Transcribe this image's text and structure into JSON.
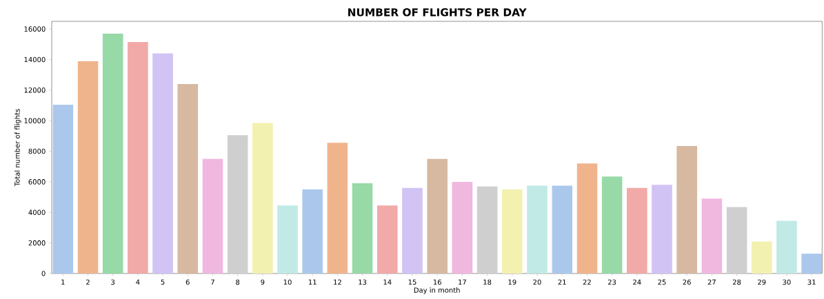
{
  "chart_data": {
    "type": "bar",
    "title": "NUMBER OF FLIGHTS PER DAY",
    "xlabel": "Day in month",
    "ylabel": "Total number of flights",
    "categories": [
      "1",
      "2",
      "3",
      "4",
      "5",
      "6",
      "7",
      "8",
      "9",
      "10",
      "11",
      "12",
      "13",
      "14",
      "15",
      "16",
      "17",
      "18",
      "19",
      "20",
      "21",
      "22",
      "23",
      "24",
      "25",
      "26",
      "27",
      "28",
      "29",
      "30",
      "31"
    ],
    "values": [
      11050,
      13900,
      15700,
      15150,
      14400,
      12400,
      7500,
      9050,
      9850,
      4450,
      5500,
      8550,
      5900,
      4450,
      5600,
      7500,
      6000,
      5700,
      5500,
      5750,
      5750,
      7200,
      6350,
      5600,
      5800,
      8350,
      4900,
      4350,
      2100,
      3450,
      1300
    ],
    "colors": [
      "#abc8ec",
      "#f0b48d",
      "#97d9a7",
      "#f2aaa8",
      "#d2c3f5",
      "#d6b9a0",
      "#f0b7df",
      "#cfcfcf",
      "#f3f1b0",
      "#c1eae7",
      "#abc8ec",
      "#f0b48d",
      "#97d9a7",
      "#f2aaa8",
      "#d2c3f5",
      "#d6b9a0",
      "#f0b7df",
      "#cfcfcf",
      "#f3f1b0",
      "#c1eae7",
      "#abc8ec",
      "#f0b48d",
      "#97d9a7",
      "#f2aaa8",
      "#d2c3f5",
      "#d6b9a0",
      "#f0b7df",
      "#cfcfcf",
      "#f3f1b0",
      "#c1eae7",
      "#abc8ec"
    ],
    "ylim": [
      0,
      16500
    ],
    "yticks": [
      0,
      2000,
      4000,
      6000,
      8000,
      10000,
      12000,
      14000,
      16000
    ],
    "grid": false
  }
}
